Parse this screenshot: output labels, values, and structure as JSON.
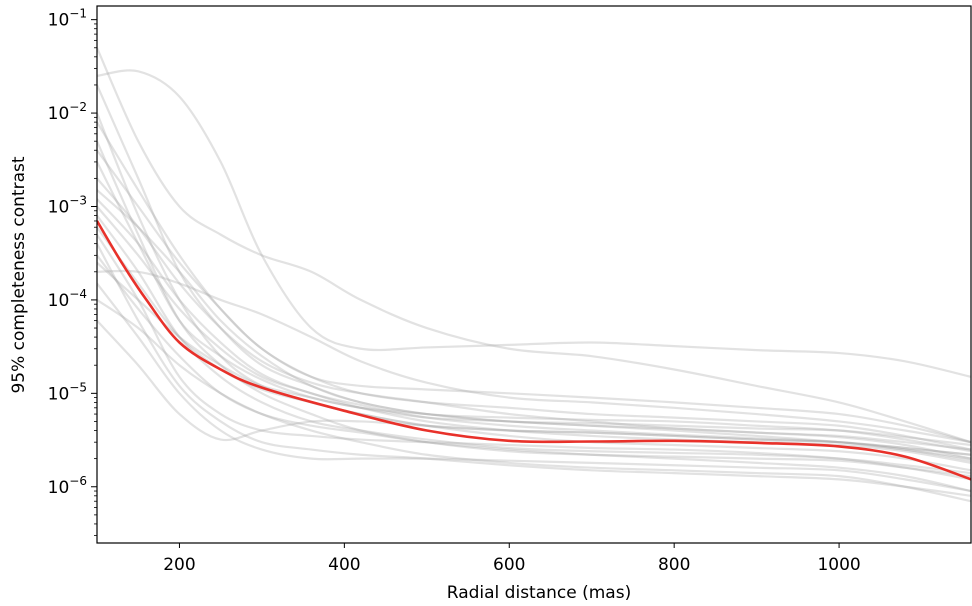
{
  "chart_data": {
    "type": "line",
    "title": "",
    "xlabel": "Radial distance (mas)",
    "ylabel": "95% completeness contrast",
    "xlim": [
      100,
      1160
    ],
    "ylim": [
      2.5e-07,
      0.14
    ],
    "yscale": "log",
    "grid": false,
    "x_ticks": [
      {
        "value": 200,
        "label": "200"
      },
      {
        "value": 400,
        "label": "400"
      },
      {
        "value": 600,
        "label": "600"
      },
      {
        "value": 800,
        "label": "800"
      },
      {
        "value": 1000,
        "label": "1000"
      }
    ],
    "y_ticks": [
      {
        "exp": -6,
        "base": "10",
        "sup": "−6"
      },
      {
        "exp": -5,
        "base": "10",
        "sup": "−5"
      },
      {
        "exp": -4,
        "base": "10",
        "sup": "−4"
      },
      {
        "exp": -3,
        "base": "10",
        "sup": "−3"
      },
      {
        "exp": -2,
        "base": "10",
        "sup": "−2"
      },
      {
        "exp": -1,
        "base": "10",
        "sup": "−1"
      }
    ],
    "colors": {
      "median": "#e8312a",
      "individual": "#9e9e9e"
    },
    "median": {
      "x": [
        100,
        130,
        160,
        200,
        250,
        300,
        400,
        500,
        600,
        700,
        800,
        900,
        1000,
        1080,
        1160
      ],
      "y": [
        0.0007,
        0.00025,
        0.0001,
        3.5e-05,
        1.8e-05,
        1.15e-05,
        6.5e-06,
        4e-06,
        3.1e-06,
        3.05e-06,
        3.1e-06,
        2.95e-06,
        2.7e-06,
        2.1e-06,
        1.2e-06
      ]
    },
    "series": [
      {
        "x": [
          100,
          150,
          200,
          250,
          300,
          360,
          420,
          500,
          600,
          700,
          800,
          900,
          1000,
          1080,
          1160
        ],
        "y": [
          0.025,
          0.028,
          0.015,
          0.003,
          0.0003,
          5e-05,
          3e-05,
          3.1e-05,
          3.3e-05,
          3.5e-05,
          3.2e-05,
          2.9e-05,
          2.7e-05,
          2.2e-05,
          1.5e-05
        ]
      },
      {
        "x": [
          100,
          150,
          200,
          250,
          300,
          360,
          420,
          500,
          600,
          700,
          800,
          900,
          1000,
          1080,
          1160
        ],
        "y": [
          0.05,
          0.005,
          0.001,
          0.0005,
          0.0003,
          0.0002,
          0.0001,
          5e-05,
          3e-05,
          2.5e-05,
          1.8e-05,
          1.2e-05,
          8e-06,
          5e-06,
          3e-06
        ]
      },
      {
        "x": [
          100,
          150,
          200,
          250,
          300,
          360,
          420,
          500,
          600,
          700,
          800,
          900,
          1000,
          1080,
          1160
        ],
        "y": [
          0.0002,
          0.0002,
          0.00015,
          0.0001,
          7e-05,
          4e-05,
          2.2e-05,
          1.3e-05,
          9e-06,
          8e-06,
          7e-06,
          6e-06,
          5e-06,
          4e-06,
          3e-06
        ]
      },
      {
        "x": [
          100,
          150,
          200,
          250,
          300,
          360,
          420,
          500,
          600,
          700,
          800,
          900,
          1000,
          1080,
          1160
        ],
        "y": [
          0.01,
          0.0008,
          0.0001,
          2.5e-05,
          1.2e-05,
          8e-06,
          6e-06,
          4.5e-06,
          4e-06,
          3.8e-06,
          3.5e-06,
          3.2e-06,
          3e-06,
          2.6e-06,
          2.2e-06
        ]
      },
      {
        "x": [
          100,
          150,
          200,
          250,
          300,
          360,
          420,
          500,
          600,
          700,
          800,
          900,
          1000,
          1080,
          1160
        ],
        "y": [
          0.003,
          0.0004,
          6e-05,
          2.5e-05,
          1.4e-05,
          9e-06,
          7e-06,
          5.5e-06,
          5e-06,
          4.5e-06,
          4.2e-06,
          3.8e-06,
          3.4e-06,
          2.8e-06,
          2e-06
        ]
      },
      {
        "x": [
          100,
          150,
          200,
          250,
          300,
          360,
          420,
          500,
          600,
          700,
          800,
          900,
          1000,
          1080,
          1160
        ],
        "y": [
          0.0005,
          0.0001,
          1.5e-05,
          6e-06,
          4e-06,
          3.5e-06,
          3.2e-06,
          3e-06,
          2.8e-06,
          2.6e-06,
          2.5e-06,
          2.3e-06,
          2e-06,
          1.6e-06,
          1.2e-06
        ]
      },
      {
        "x": [
          100,
          150,
          200,
          250,
          300,
          360,
          420,
          500,
          600,
          700,
          800,
          900,
          1000,
          1080,
          1160
        ],
        "y": [
          0.02,
          0.002,
          0.0002,
          5e-05,
          2e-05,
          1.2e-05,
          8e-06,
          6e-06,
          5e-06,
          4.8e-06,
          4.5e-06,
          4.2e-06,
          4e-06,
          3.4e-06,
          2.8e-06
        ]
      },
      {
        "x": [
          100,
          150,
          200,
          250,
          300,
          360,
          420,
          500,
          600,
          700,
          800,
          900,
          1000,
          1080,
          1160
        ],
        "y": [
          0.001,
          0.0003,
          8e-05,
          3e-05,
          1.5e-05,
          1e-05,
          7e-06,
          5e-06,
          4e-06,
          3.5e-06,
          3.2e-06,
          3e-06,
          2.8e-06,
          2.4e-06,
          1.8e-06
        ]
      },
      {
        "x": [
          100,
          150,
          200,
          250,
          300,
          360,
          420,
          500,
          600,
          700,
          800,
          900,
          1000,
          1080,
          1160
        ],
        "y": [
          6e-05,
          2e-05,
          6e-06,
          3.2e-06,
          4e-06,
          5e-06,
          5e-06,
          4.5e-06,
          4e-06,
          3.8e-06,
          3.5e-06,
          3.2e-06,
          3e-06,
          2.6e-06,
          2.2e-06
        ]
      },
      {
        "x": [
          100,
          150,
          200,
          250,
          300,
          360,
          420,
          500,
          600,
          700,
          800,
          900,
          1000,
          1080,
          1160
        ],
        "y": [
          0.004,
          0.001,
          0.00025,
          8e-05,
          3e-05,
          1.5e-05,
          1e-05,
          8e-06,
          7e-06,
          6e-06,
          5.5e-06,
          5e-06,
          4.5e-06,
          3.5e-06,
          2.5e-06
        ]
      },
      {
        "x": [
          100,
          150,
          200,
          250,
          300,
          360,
          420,
          500,
          600,
          700,
          800,
          900,
          1000,
          1080,
          1160
        ],
        "y": [
          0.0015,
          0.0006,
          0.0002,
          6e-05,
          2.5e-05,
          1.2e-05,
          8e-06,
          6e-06,
          5.5e-06,
          5.2e-06,
          5e-06,
          4.5e-06,
          4e-06,
          3.2e-06,
          2.4e-06
        ]
      },
      {
        "x": [
          100,
          150,
          200,
          250,
          300,
          360,
          420,
          500,
          600,
          700,
          800,
          900,
          1000,
          1080,
          1160
        ],
        "y": [
          0.0008,
          0.0002,
          4e-05,
          1.5e-05,
          8e-06,
          5e-06,
          4e-06,
          3.2e-06,
          2.6e-06,
          2.4e-06,
          2.3e-06,
          2.2e-06,
          2e-06,
          1.7e-06,
          1.4e-06
        ]
      },
      {
        "x": [
          100,
          150,
          200,
          250,
          300,
          360,
          420,
          500,
          600,
          700,
          800,
          900,
          1000,
          1080,
          1160
        ],
        "y": [
          0.0003,
          8e-05,
          2.5e-05,
          1e-05,
          6e-06,
          4.5e-06,
          3.8e-06,
          3e-06,
          2.5e-06,
          2.2e-06,
          2e-06,
          1.8e-06,
          1.6e-06,
          1.3e-06,
          9e-07
        ]
      },
      {
        "x": [
          100,
          150,
          200,
          250,
          300,
          360,
          420,
          500,
          600,
          700,
          800,
          900,
          1000,
          1080,
          1160
        ],
        "y": [
          0.0001,
          5e-05,
          2e-05,
          1e-05,
          6e-06,
          4e-06,
          3e-06,
          2.2e-06,
          1.8e-06,
          1.6e-06,
          1.5e-06,
          1.4e-06,
          1.3e-06,
          1e-06,
          7e-07
        ]
      },
      {
        "x": [
          100,
          150,
          200,
          250,
          300,
          360,
          420,
          500,
          600,
          700,
          800,
          900,
          1000,
          1080,
          1160
        ],
        "y": [
          0.005,
          0.0005,
          6e-05,
          2e-05,
          1e-05,
          6e-06,
          4e-06,
          3e-06,
          2.4e-06,
          2.2e-06,
          2.1e-06,
          2e-06,
          1.9e-06,
          1.6e-06,
          1.3e-06
        ]
      },
      {
        "x": [
          100,
          150,
          200,
          250,
          300,
          360,
          420,
          500,
          600,
          700,
          800,
          900,
          1000,
          1080,
          1160
        ],
        "y": [
          0.002,
          0.0006,
          0.00015,
          5e-05,
          2.2e-05,
          1.3e-05,
          1e-05,
          8e-06,
          6e-06,
          5e-06,
          4.2e-06,
          3.8e-06,
          3.5e-06,
          3e-06,
          2.5e-06
        ]
      },
      {
        "x": [
          100,
          150,
          200,
          250,
          300,
          360,
          420,
          500,
          600,
          700,
          800,
          900,
          1000,
          1080,
          1160
        ],
        "y": [
          0.0006,
          0.00015,
          4e-05,
          1.8e-05,
          1.1e-05,
          8e-06,
          6e-06,
          4.5e-06,
          3.5e-06,
          3e-06,
          2.8e-06,
          2.6e-06,
          2.4e-06,
          2e-06,
          1.5e-06
        ]
      },
      {
        "x": [
          100,
          150,
          200,
          250,
          300,
          360,
          420,
          500,
          600,
          700,
          800,
          900,
          1000,
          1080,
          1160
        ],
        "y": [
          0.0004,
          6e-05,
          1.2e-05,
          5e-06,
          3e-06,
          2.5e-06,
          2.2e-06,
          2e-06,
          1.7e-06,
          1.5e-06,
          1.4e-06,
          1.3e-06,
          1.2e-06,
          1e-06,
          8e-07
        ]
      },
      {
        "x": [
          100,
          150,
          200,
          250,
          300,
          360,
          420,
          500,
          600,
          700,
          800,
          900,
          1000,
          1080,
          1160
        ],
        "y": [
          0.008,
          0.0015,
          0.0003,
          8e-05,
          3e-05,
          1.5e-05,
          1.2e-05,
          1.1e-05,
          1e-05,
          9e-06,
          8e-06,
          7e-06,
          6e-06,
          4.5e-06,
          3e-06
        ]
      },
      {
        "x": [
          100,
          150,
          200,
          250,
          300,
          360,
          420,
          500,
          600,
          700,
          800,
          900,
          1000,
          1080,
          1160
        ],
        "y": [
          0.00025,
          0.0001,
          4e-05,
          2e-05,
          1.2e-05,
          9e-06,
          7e-06,
          6e-06,
          5e-06,
          4.5e-06,
          4e-06,
          3.5e-06,
          3e-06,
          2.5e-06,
          2e-06
        ]
      },
      {
        "x": [
          100,
          150,
          200,
          250,
          300,
          360,
          420,
          500,
          600,
          700,
          800,
          900,
          1000,
          1080,
          1160
        ],
        "y": [
          0.0012,
          0.0004,
          0.0001,
          3.5e-05,
          1.6e-05,
          1e-05,
          7.5e-06,
          5.5e-06,
          4.5e-06,
          4e-06,
          3.6e-06,
          3.3e-06,
          3e-06,
          2.5e-06,
          1.9e-06
        ]
      },
      {
        "x": [
          100,
          150,
          200,
          250,
          300,
          360,
          420,
          500,
          600,
          700,
          800,
          900,
          1000,
          1080,
          1160
        ],
        "y": [
          0.00015,
          4e-05,
          1e-05,
          4e-06,
          2.5e-06,
          2e-06,
          2e-06,
          2e-06,
          1.9e-06,
          1.8e-06,
          1.7e-06,
          1.6e-06,
          1.5e-06,
          1.2e-06,
          9e-07
        ]
      }
    ]
  }
}
